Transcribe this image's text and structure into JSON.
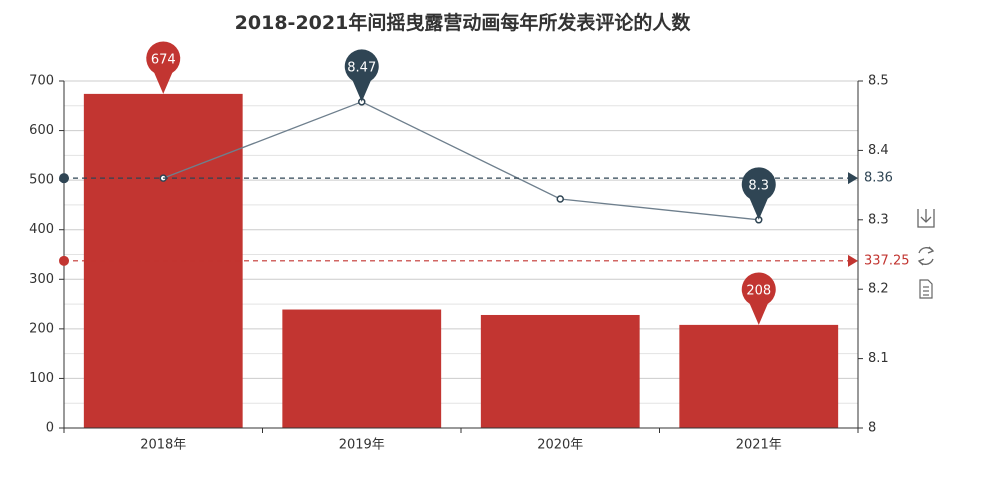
{
  "colors": {
    "bar": "#c23531",
    "line": "#6e7f8d",
    "line_marker": "#2f4554",
    "axis": "#333333",
    "grid": "#cccccc",
    "avg_bar": "#c23531",
    "avg_line": "#2f4554"
  },
  "chart_data": {
    "type": "bar",
    "title": "2018-2021年间摇曳露营动画每年所发表评论的人数",
    "categories": [
      "2018年",
      "2019年",
      "2020年",
      "2021年"
    ],
    "series": [
      {
        "type": "bar",
        "values": [
          674,
          239,
          228,
          208
        ],
        "axis": "left"
      },
      {
        "type": "line",
        "values": [
          8.36,
          8.47,
          8.33,
          8.3
        ],
        "axis": "right"
      }
    ],
    "y_left": {
      "min": 0,
      "max": 700,
      "ticks": [
        "0",
        "100",
        "200",
        "300",
        "400",
        "500",
        "600",
        "700"
      ]
    },
    "y_right": {
      "min": 8,
      "max": 8.5,
      "ticks": [
        "8",
        "8.1",
        "8.2",
        "8.3",
        "8.4",
        "8.5"
      ]
    },
    "mark_points": [
      {
        "series": 0,
        "index": 0,
        "label": "674"
      },
      {
        "series": 0,
        "index": 3,
        "label": "208"
      },
      {
        "series": 1,
        "index": 1,
        "label": "8.47"
      },
      {
        "series": 1,
        "index": 3,
        "label": "8.3"
      }
    ],
    "mark_lines": [
      {
        "series": 0,
        "value": 337.25,
        "label": "337.25"
      },
      {
        "series": 1,
        "value": 8.36,
        "label": "8.36"
      }
    ],
    "grid": true
  },
  "toolbox": [
    "download-icon",
    "refresh-icon",
    "data-view-icon"
  ]
}
